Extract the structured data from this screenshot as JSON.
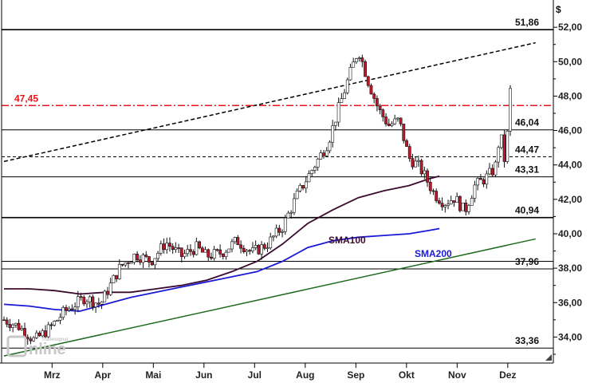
{
  "chart_data": {
    "type": "candlestick",
    "unit": "$",
    "ylim": [
      33.0,
      52.5
    ],
    "y_ticks": [
      "34,00",
      "36,00",
      "38,00",
      "40,00",
      "42,00",
      "44,00",
      "46,00",
      "48,00",
      "50,00",
      "52,00"
    ],
    "y_tick_values": [
      34,
      36,
      38,
      40,
      42,
      44,
      46,
      48,
      50,
      52
    ],
    "x_ticks": [
      "Mrz",
      "Apr",
      "Mai",
      "Jun",
      "Jul",
      "Aug",
      "Sep",
      "Okt",
      "Nov",
      "Dez"
    ],
    "grid": false,
    "levels": [
      {
        "label": "51,86",
        "value": 51.86,
        "style": "solid",
        "color": "#000000"
      },
      {
        "label": "47,45",
        "value": 47.45,
        "style": "dashdot",
        "color": "#e8141c"
      },
      {
        "label": "46,04",
        "value": 46.04,
        "style": "solid",
        "color": "#000000"
      },
      {
        "label": "44,47",
        "value": 44.47,
        "style": "dashed",
        "color": "#000000"
      },
      {
        "label": "43,31",
        "value": 43.31,
        "style": "solid",
        "color": "#000000"
      },
      {
        "label": "40,94",
        "value": 40.94,
        "style": "solid",
        "color": "#000000"
      },
      {
        "label": "37,96",
        "value": 37.96,
        "style": "solid",
        "color": "#000000"
      },
      {
        "label": "33,36",
        "value": 33.36,
        "style": "solid",
        "color": "#000000"
      }
    ],
    "extra_line": {
      "value": 38.4,
      "color": "#000000"
    },
    "trendlines": [
      {
        "name": "resistance",
        "style": "dashed",
        "color": "#000000",
        "start": {
          "month": 0.0,
          "value": 44.2
        },
        "end": {
          "month": 10.5,
          "value": 51.1
        }
      },
      {
        "name": "support",
        "style": "solid",
        "color": "#1f6b1f",
        "start": {
          "month": 0.0,
          "value": 32.9
        },
        "end": {
          "month": 10.5,
          "value": 39.7
        }
      }
    ],
    "series": [
      {
        "name": "SMA100",
        "color": "#3b0a2e",
        "points": [
          [
            0.0,
            36.8
          ],
          [
            0.5,
            36.8
          ],
          [
            1.0,
            36.7
          ],
          [
            1.5,
            36.5
          ],
          [
            2.0,
            36.6
          ],
          [
            2.5,
            36.6
          ],
          [
            3.0,
            36.8
          ],
          [
            3.5,
            37.0
          ],
          [
            4.0,
            37.3
          ],
          [
            4.5,
            37.8
          ],
          [
            5.0,
            38.4
          ],
          [
            5.5,
            39.4
          ],
          [
            6.0,
            40.6
          ],
          [
            6.5,
            41.4
          ],
          [
            7.0,
            42.1
          ],
          [
            7.5,
            42.5
          ],
          [
            8.0,
            42.8
          ],
          [
            8.4,
            43.2
          ],
          [
            8.6,
            43.35
          ]
        ]
      },
      {
        "name": "SMA200",
        "color": "#1a1ad6",
        "points": [
          [
            0.0,
            35.9
          ],
          [
            0.5,
            35.8
          ],
          [
            1.0,
            35.6
          ],
          [
            1.5,
            35.5
          ],
          [
            2.0,
            35.9
          ],
          [
            2.5,
            36.3
          ],
          [
            3.0,
            36.6
          ],
          [
            3.5,
            36.9
          ],
          [
            4.0,
            37.2
          ],
          [
            4.5,
            37.5
          ],
          [
            5.0,
            37.8
          ],
          [
            5.5,
            38.4
          ],
          [
            6.0,
            39.2
          ],
          [
            6.5,
            39.6
          ],
          [
            7.0,
            39.8
          ],
          [
            7.5,
            39.9
          ],
          [
            8.0,
            40.0
          ],
          [
            8.4,
            40.2
          ],
          [
            8.6,
            40.3
          ]
        ]
      }
    ],
    "series_labels": [
      "SMA100",
      "SMA200"
    ],
    "price_path": [
      [
        0.0,
        35.0
      ],
      [
        0.3,
        34.6
      ],
      [
        0.6,
        33.8
      ],
      [
        0.9,
        34.5
      ],
      [
        1.2,
        35.5
      ],
      [
        1.6,
        36.3
      ],
      [
        1.9,
        35.9
      ],
      [
        2.1,
        37.0
      ],
      [
        2.3,
        38.1
      ],
      [
        2.6,
        38.8
      ],
      [
        2.9,
        38.4
      ],
      [
        3.2,
        39.5
      ],
      [
        3.5,
        38.7
      ],
      [
        3.8,
        39.2
      ],
      [
        4.0,
        38.7
      ],
      [
        4.3,
        38.9
      ],
      [
        4.6,
        39.6
      ],
      [
        4.9,
        38.9
      ],
      [
        5.2,
        39.4
      ],
      [
        5.5,
        40.4
      ],
      [
        5.8,
        42.3
      ],
      [
        6.1,
        43.8
      ],
      [
        6.4,
        45.3
      ],
      [
        6.6,
        47.2
      ],
      [
        6.8,
        49.0
      ],
      [
        7.0,
        50.7
      ],
      [
        7.2,
        48.8
      ],
      [
        7.4,
        47.2
      ],
      [
        7.6,
        46.3
      ],
      [
        7.8,
        46.6
      ],
      [
        8.0,
        44.4
      ],
      [
        8.2,
        43.9
      ],
      [
        8.3,
        43.4
      ],
      [
        8.5,
        42.3
      ],
      [
        8.7,
        41.8
      ],
      [
        8.9,
        42.1
      ],
      [
        9.1,
        41.3
      ],
      [
        9.3,
        42.8
      ],
      [
        9.5,
        43.2
      ],
      [
        9.7,
        43.8
      ],
      [
        9.8,
        45.9
      ],
      [
        9.9,
        44.0
      ],
      [
        10.0,
        48.3
      ]
    ],
    "candle_count": 172,
    "watermark": "Tradesignal Online"
  }
}
